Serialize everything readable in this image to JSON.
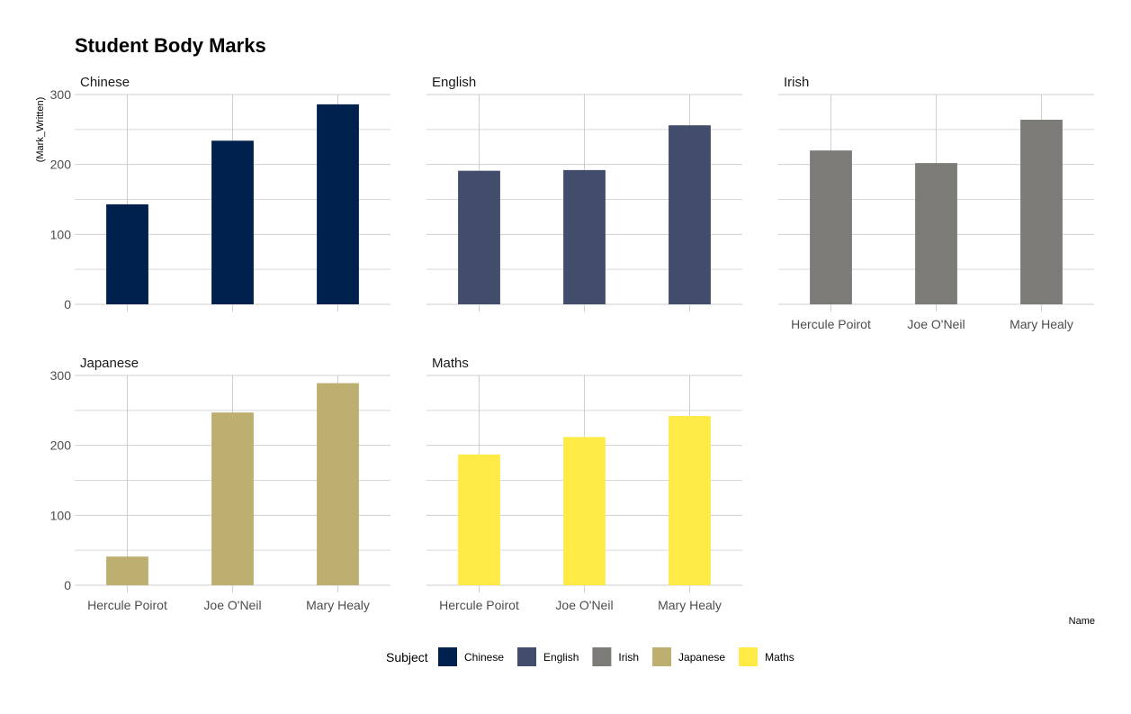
{
  "chart_data": {
    "type": "bar",
    "title": "Student Body Marks",
    "xlabel": "Name",
    "ylabel": "(Mark_Written)",
    "categories": [
      "Hercule Poirot",
      "Joe O'Neil",
      "Mary Healy"
    ],
    "ylim": [
      0,
      300
    ],
    "yticks": [
      0,
      100,
      200,
      300
    ],
    "grid": true,
    "legend_placement": "bottom",
    "legend_title": "Subject",
    "facets": [
      {
        "name": "Chinese",
        "values": [
          143,
          234,
          286
        ],
        "color": "#00204D"
      },
      {
        "name": "English",
        "values": [
          191,
          192,
          256
        ],
        "color": "#414D6B"
      },
      {
        "name": "Irish",
        "values": [
          220,
          202,
          264
        ],
        "color": "#7C7B78"
      },
      {
        "name": "Japanese",
        "values": [
          41,
          247,
          289
        ],
        "color": "#BCAF6F"
      },
      {
        "name": "Maths",
        "values": [
          187,
          212,
          242
        ],
        "color": "#FFEA46"
      }
    ]
  }
}
